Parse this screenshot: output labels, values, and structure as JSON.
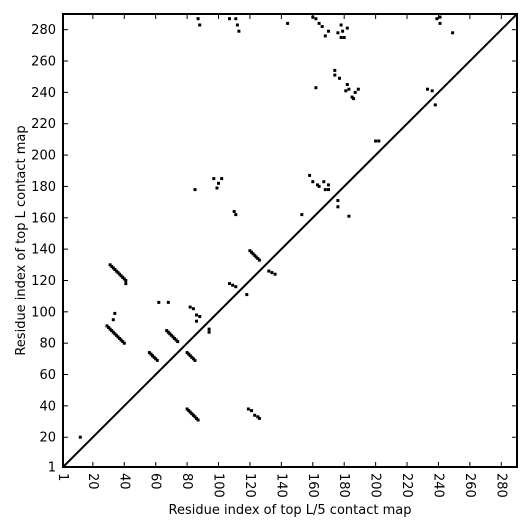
{
  "chart_data": {
    "type": "scatter",
    "xlabel": "Residue index of top L/5 contact map",
    "ylabel": "Residue index of top L contact map",
    "xlim": [
      1,
      290
    ],
    "ylim": [
      1,
      290
    ],
    "xticks": [
      1,
      20,
      40,
      60,
      80,
      100,
      120,
      140,
      160,
      180,
      200,
      220,
      240,
      260,
      280
    ],
    "yticks": [
      1,
      20,
      40,
      60,
      80,
      100,
      120,
      140,
      160,
      180,
      200,
      220,
      240,
      260,
      280
    ],
    "diagonal": true,
    "marker_color": "#000000",
    "series": [
      {
        "points": [
          [
            12,
            20
          ],
          [
            29,
            91
          ],
          [
            30,
            90
          ],
          [
            31,
            89
          ],
          [
            32,
            88
          ],
          [
            33,
            87
          ],
          [
            34,
            86
          ],
          [
            35,
            85
          ],
          [
            36,
            84
          ],
          [
            37,
            83
          ],
          [
            38,
            82
          ],
          [
            39,
            81
          ],
          [
            40,
            80
          ],
          [
            31,
            130
          ],
          [
            32,
            129
          ],
          [
            33,
            128
          ],
          [
            34,
            127
          ],
          [
            35,
            126
          ],
          [
            36,
            125
          ],
          [
            37,
            124
          ],
          [
            38,
            123
          ],
          [
            39,
            122
          ],
          [
            40,
            121
          ],
          [
            41,
            120
          ],
          [
            41,
            118
          ],
          [
            33,
            95
          ],
          [
            34,
            99
          ],
          [
            56,
            74
          ],
          [
            57,
            73
          ],
          [
            58,
            72
          ],
          [
            59,
            71
          ],
          [
            60,
            70
          ],
          [
            61,
            69
          ],
          [
            62,
            106
          ],
          [
            68,
            106
          ],
          [
            67,
            88
          ],
          [
            68,
            87
          ],
          [
            69,
            86
          ],
          [
            70,
            85
          ],
          [
            71,
            84
          ],
          [
            72,
            83
          ],
          [
            73,
            82
          ],
          [
            74,
            81
          ],
          [
            80,
            74
          ],
          [
            81,
            73
          ],
          [
            82,
            72
          ],
          [
            83,
            71
          ],
          [
            84,
            70
          ],
          [
            85,
            69
          ],
          [
            80,
            38
          ],
          [
            81,
            37
          ],
          [
            82,
            36
          ],
          [
            83,
            35
          ],
          [
            84,
            34
          ],
          [
            85,
            33
          ],
          [
            86,
            32
          ],
          [
            87,
            31
          ],
          [
            82,
            103
          ],
          [
            84,
            102
          ],
          [
            86,
            98
          ],
          [
            88,
            97
          ],
          [
            86,
            94
          ],
          [
            94,
            89
          ],
          [
            94,
            87
          ],
          [
            85,
            178
          ],
          [
            87,
            287
          ],
          [
            88,
            283
          ],
          [
            97,
            185
          ],
          [
            99,
            179
          ],
          [
            100,
            182
          ],
          [
            102,
            185
          ],
          [
            107,
            287
          ],
          [
            111,
            287
          ],
          [
            112,
            283
          ],
          [
            113,
            279
          ],
          [
            107,
            118
          ],
          [
            109,
            117
          ],
          [
            111,
            116
          ],
          [
            110,
            164
          ],
          [
            111,
            162
          ],
          [
            118,
            111
          ],
          [
            119,
            38
          ],
          [
            121,
            37
          ],
          [
            123,
            34
          ],
          [
            125,
            33
          ],
          [
            126,
            32
          ],
          [
            120,
            139
          ],
          [
            121,
            138
          ],
          [
            122,
            137
          ],
          [
            123,
            136
          ],
          [
            124,
            135
          ],
          [
            125,
            134
          ],
          [
            126,
            133
          ],
          [
            132,
            126
          ],
          [
            134,
            125
          ],
          [
            136,
            124
          ],
          [
            144,
            284
          ],
          [
            153,
            162
          ],
          [
            158,
            187
          ],
          [
            160,
            183
          ],
          [
            160,
            288
          ],
          [
            162,
            287
          ],
          [
            163,
            181
          ],
          [
            164,
            180
          ],
          [
            167,
            183
          ],
          [
            168,
            178
          ],
          [
            170,
            181
          ],
          [
            170,
            178
          ],
          [
            162,
            243
          ],
          [
            164,
            284
          ],
          [
            166,
            282
          ],
          [
            168,
            276
          ],
          [
            170,
            279
          ],
          [
            174,
            254
          ],
          [
            174,
            251
          ],
          [
            177,
            249
          ],
          [
            178,
            283
          ],
          [
            179,
            279
          ],
          [
            176,
            278
          ],
          [
            178,
            275
          ],
          [
            180,
            275
          ],
          [
            182,
            281
          ],
          [
            176,
            171
          ],
          [
            176,
            167
          ],
          [
            181,
            241
          ],
          [
            182,
            245
          ],
          [
            183,
            242
          ],
          [
            183,
            161
          ],
          [
            185,
            237
          ],
          [
            186,
            236
          ],
          [
            187,
            240
          ],
          [
            189,
            242
          ],
          [
            200,
            209
          ],
          [
            202,
            209
          ],
          [
            233,
            242
          ],
          [
            236,
            241
          ],
          [
            238,
            232
          ],
          [
            239,
            287
          ],
          [
            241,
            288
          ],
          [
            241,
            284
          ],
          [
            249,
            278
          ]
        ]
      }
    ]
  }
}
